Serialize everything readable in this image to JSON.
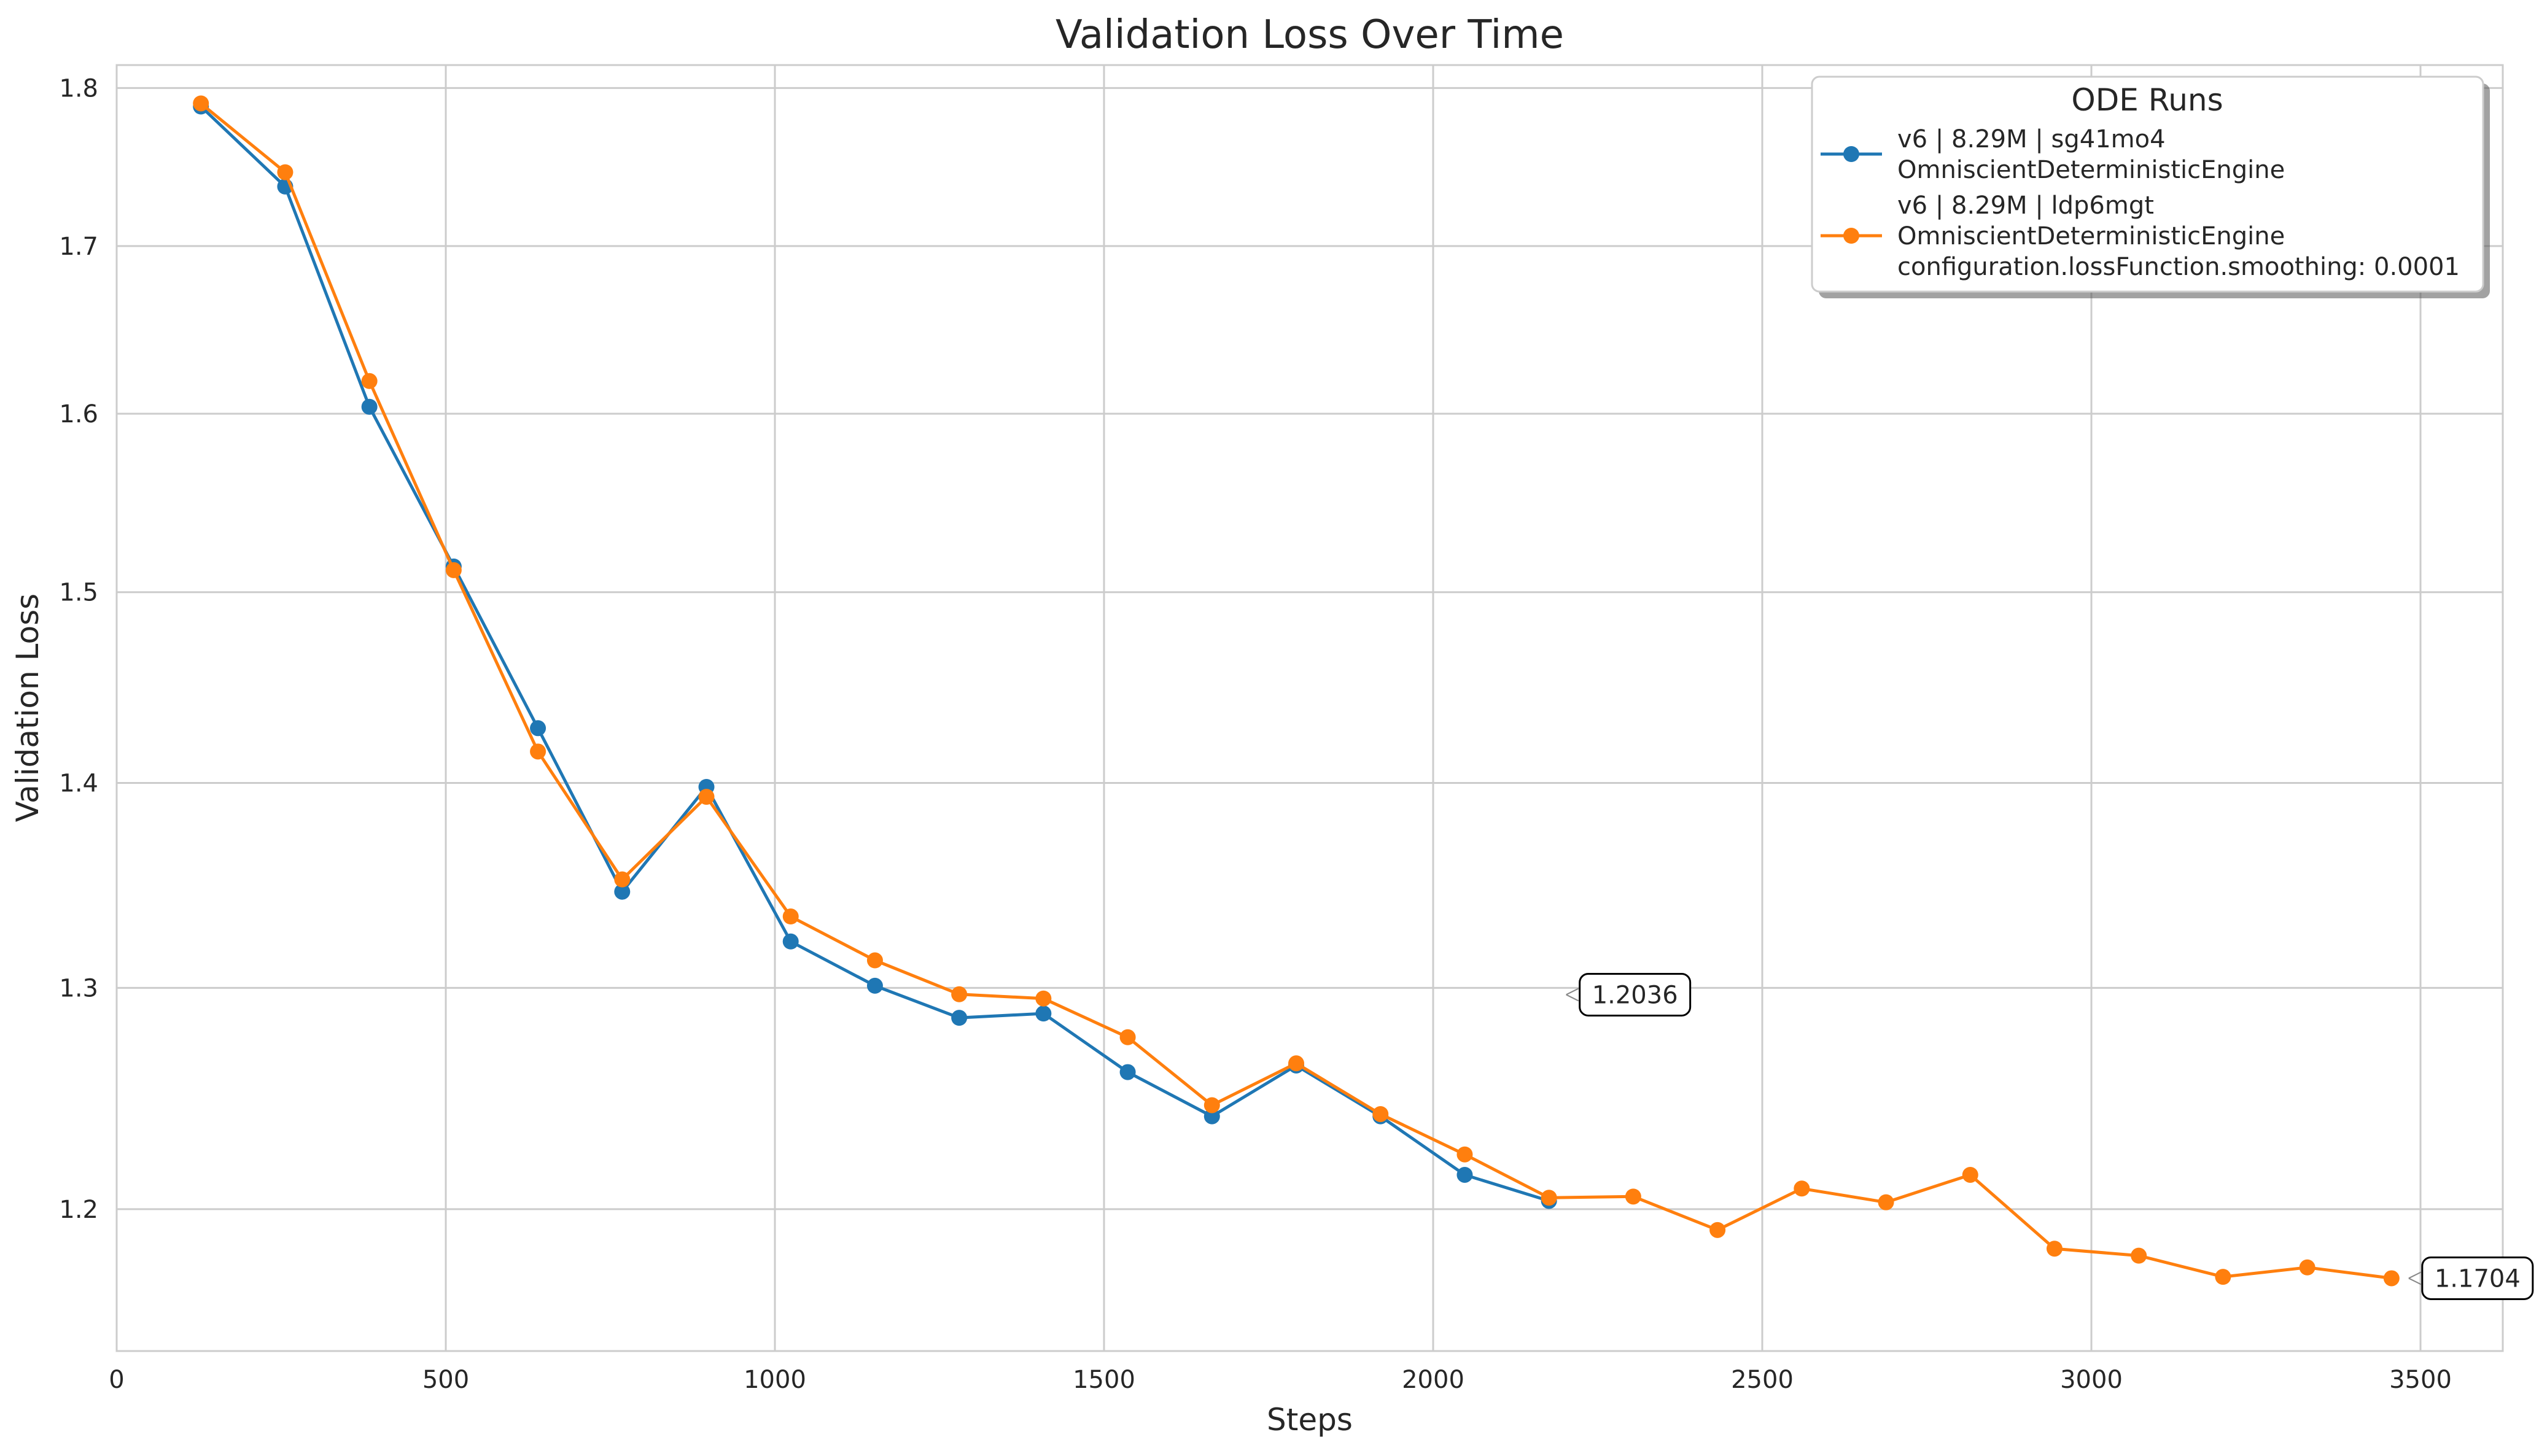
{
  "chart_data": {
    "type": "line",
    "title": "Validation Loss Over Time",
    "xlabel": "Steps",
    "ylabel": "Validation Loss",
    "xlim": [
      0,
      3625
    ],
    "ylim": [
      1.14,
      1.815
    ],
    "yscale": "log",
    "grid": true,
    "x_ticks": [
      0,
      500,
      1000,
      1500,
      2000,
      2500,
      3000,
      3500
    ],
    "x_tick_labels": [
      "0",
      "500",
      "1000",
      "1500",
      "2000",
      "2500",
      "3000",
      "3500"
    ],
    "y_ticks": [
      1.2,
      1.3,
      1.4,
      1.5,
      1.6,
      1.7,
      1.8
    ],
    "y_tick_labels": [
      "1.2",
      "1.3",
      "1.4",
      "1.5",
      "1.6",
      "1.7",
      "1.8"
    ],
    "legend": {
      "title": "ODE Runs",
      "position": "top-right"
    },
    "series": [
      {
        "name": "v6 | 8.29M | sg41mo4\nOmniscientDeterministicEngine",
        "legend_lines": [
          "v6 | 8.29M | sg41mo4",
          "OmniscientDeterministicEngine"
        ],
        "color": "#1f77b4",
        "x": [
          128,
          256,
          384,
          512,
          640,
          768,
          896,
          1024,
          1152,
          1280,
          1408,
          1536,
          1664,
          1792,
          1920,
          2048,
          2176
        ],
        "values": [
          1.788,
          1.737,
          1.604,
          1.514,
          1.428,
          1.346,
          1.398,
          1.322,
          1.301,
          1.286,
          1.288,
          1.261,
          1.241,
          1.264,
          1.241,
          1.215,
          1.2036
        ],
        "end_label": "1.2036"
      },
      {
        "name": "v6 | 8.29M | ldp6mgt\nOmniscientDeterministicEngine\nconfiguration.lossFunction.smoothing: 0.0001",
        "legend_lines": [
          "v6 | 8.29M | ldp6mgt",
          "OmniscientDeterministicEngine",
          "configuration.lossFunction.smoothing: 0.0001"
        ],
        "color": "#ff7f0e",
        "x": [
          128,
          256,
          384,
          512,
          640,
          768,
          896,
          1024,
          1152,
          1280,
          1408,
          1536,
          1664,
          1792,
          1920,
          2048,
          2176,
          2304,
          2432,
          2560,
          2688,
          2816,
          2944,
          3072,
          3200,
          3328,
          3456
        ],
        "values": [
          1.79,
          1.746,
          1.619,
          1.512,
          1.416,
          1.352,
          1.393,
          1.334,
          1.313,
          1.297,
          1.295,
          1.277,
          1.246,
          1.265,
          1.242,
          1.224,
          1.205,
          1.2055,
          1.191,
          1.209,
          1.203,
          1.215,
          1.183,
          1.18,
          1.171,
          1.175,
          1.1704
        ],
        "end_label": "1.1704"
      }
    ]
  }
}
